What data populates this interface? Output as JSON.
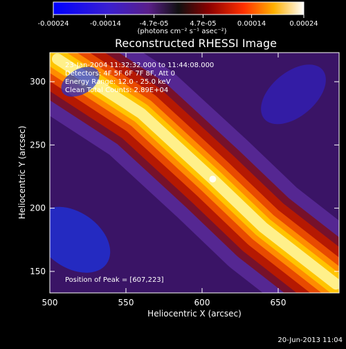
{
  "chart_data": {
    "type": "heatmap",
    "title": "Reconstructed RHESSI Image",
    "xlabel": "Heliocentric X (arcsec)",
    "ylabel": "Heliocentric Y (arcsec)",
    "xlim": [
      500,
      690
    ],
    "ylim": [
      133,
      323
    ],
    "x_ticks": [
      500,
      550,
      600,
      650
    ],
    "y_ticks": [
      150,
      200,
      250,
      300
    ],
    "colorbar": {
      "tick_labels": [
        "-0.00024",
        "-0.00014",
        "-4.7e-05",
        "4.7e-05",
        "0.00014",
        "0.00024"
      ],
      "tick_values": [
        -0.00024,
        -0.00014,
        -4.7e-05,
        4.7e-05,
        0.00014,
        0.00024
      ],
      "range": [
        -0.00024,
        0.00024
      ],
      "unit_label": "(photons cm⁻² s⁻¹ asec⁻²)"
    },
    "annotations": {
      "time_range": "23-Jan-2004 11:32:32.000 to 11:44:08.000",
      "detectors": "Detectors: 4F 5F 6F 7F 8F, Att 0",
      "energy_range": "Energy Range: 12.0 - 25.0 keV",
      "method_counts": "Clean     Total Counts: 2.89E+04",
      "peak_position": "Position of Peak = [607,223]"
    },
    "peak": {
      "x": 607,
      "y": 223
    },
    "ridge": {
      "description": "bright diagonal emission band",
      "points": [
        [
          505,
          318
        ],
        [
          560,
          275
        ],
        [
          607,
          223
        ],
        [
          640,
          185
        ],
        [
          688,
          140
        ]
      ]
    }
  },
  "footer": {
    "timestamp": "20-Jun-2013 11:04"
  }
}
